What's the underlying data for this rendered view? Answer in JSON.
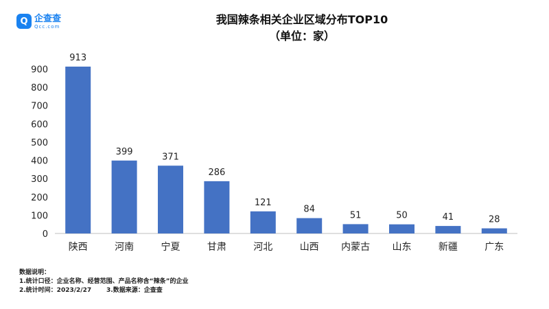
{
  "brand": {
    "name": "企查查",
    "url": "Qcc.com",
    "icon": "qcc-logo-icon",
    "color": "#1a82f0"
  },
  "chart_data": {
    "type": "bar",
    "title": "我国辣条相关企业区域分布TOP10",
    "subtitle": "（单位：家）",
    "categories": [
      "陕西",
      "河南",
      "宁夏",
      "甘肃",
      "河北",
      "山西",
      "内蒙古",
      "山东",
      "新疆",
      "广东"
    ],
    "values": [
      913,
      399,
      371,
      286,
      121,
      84,
      51,
      50,
      41,
      28
    ],
    "yticks": [
      0,
      100,
      200,
      300,
      400,
      500,
      600,
      700,
      800,
      900
    ],
    "ylim": [
      0,
      913
    ],
    "xlabel": "",
    "ylabel": "",
    "bar_color": "#4472c4",
    "grid": false
  },
  "notes": {
    "heading": "数据说明：",
    "line1": "1.统计口径：企业名称、经营范围、产品名称含“辣条”的企业",
    "line2": "2.统计时间：2023/2/27",
    "line3": "3.数据来源：企查查"
  }
}
